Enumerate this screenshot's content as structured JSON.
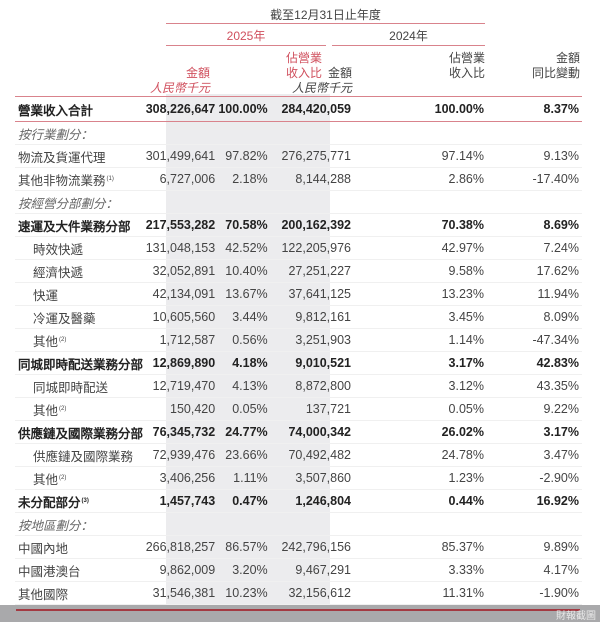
{
  "header": {
    "period_title": "截至12月31日止年度",
    "year_current": "2025年",
    "year_prior": "2024年",
    "columns": {
      "amount_2025_line1": "金額",
      "amount_2025_unit": "人民幣千元",
      "pct_2025_line1": "佔營業",
      "pct_2025_line2": "收入比",
      "amount_2024_line1": "金額",
      "amount_2024_unit": "人民幣千元",
      "pct_2024_line1": "佔營業",
      "pct_2024_line2": "收入比",
      "change_line1": "金額",
      "change_line2": "同比變動"
    }
  },
  "rows": [
    {
      "type": "total",
      "label": "營業收入合計",
      "fn": "",
      "a25": "308,226,647",
      "p25": "100.00%",
      "a24": "284,420,059",
      "p24": "100.00%",
      "chg": "8.37%"
    },
    {
      "type": "section",
      "label": "按行業劃分：",
      "fn": "",
      "a25": "",
      "p25": "",
      "a24": "",
      "p24": "",
      "chg": ""
    },
    {
      "type": "item",
      "label": "物流及貨運代理",
      "fn": "",
      "a25": "301,499,641",
      "p25": "97.82%",
      "a24": "276,275,771",
      "p24": "97.14%",
      "chg": "9.13%"
    },
    {
      "type": "item",
      "label": "其他非物流業務",
      "fn": "(1)",
      "a25": "6,727,006",
      "p25": "2.18%",
      "a24": "8,144,288",
      "p24": "2.86%",
      "chg": "-17.40%"
    },
    {
      "type": "section",
      "label": "按經營分部劃分：",
      "fn": "",
      "a25": "",
      "p25": "",
      "a24": "",
      "p24": "",
      "chg": ""
    },
    {
      "type": "bold",
      "label": "速運及大件業務分部",
      "fn": "",
      "a25": "217,553,282",
      "p25": "70.58%",
      "a24": "200,162,392",
      "p24": "70.38%",
      "chg": "8.69%"
    },
    {
      "type": "sub",
      "label": "時效快遞",
      "fn": "",
      "a25": "131,048,153",
      "p25": "42.52%",
      "a24": "122,205,976",
      "p24": "42.97%",
      "chg": "7.24%"
    },
    {
      "type": "sub",
      "label": "經濟快遞",
      "fn": "",
      "a25": "32,052,891",
      "p25": "10.40%",
      "a24": "27,251,227",
      "p24": "9.58%",
      "chg": "17.62%"
    },
    {
      "type": "sub",
      "label": "快運",
      "fn": "",
      "a25": "42,134,091",
      "p25": "13.67%",
      "a24": "37,641,125",
      "p24": "13.23%",
      "chg": "11.94%"
    },
    {
      "type": "sub",
      "label": "冷運及醫藥",
      "fn": "",
      "a25": "10,605,560",
      "p25": "3.44%",
      "a24": "9,812,161",
      "p24": "3.45%",
      "chg": "8.09%"
    },
    {
      "type": "sub",
      "label": "其他",
      "fn": "(2)",
      "a25": "1,712,587",
      "p25": "0.56%",
      "a24": "3,251,903",
      "p24": "1.14%",
      "chg": "-47.34%"
    },
    {
      "type": "bold",
      "label": "同城即時配送業務分部",
      "fn": "",
      "a25": "12,869,890",
      "p25": "4.18%",
      "a24": "9,010,521",
      "p24": "3.17%",
      "chg": "42.83%"
    },
    {
      "type": "sub",
      "label": "同城即時配送",
      "fn": "",
      "a25": "12,719,470",
      "p25": "4.13%",
      "a24": "8,872,800",
      "p24": "3.12%",
      "chg": "43.35%"
    },
    {
      "type": "sub",
      "label": "其他",
      "fn": "(2)",
      "a25": "150,420",
      "p25": "0.05%",
      "a24": "137,721",
      "p24": "0.05%",
      "chg": "9.22%"
    },
    {
      "type": "bold",
      "label": "供應鏈及國際業務分部",
      "fn": "",
      "a25": "76,345,732",
      "p25": "24.77%",
      "a24": "74,000,342",
      "p24": "26.02%",
      "chg": "3.17%"
    },
    {
      "type": "sub",
      "label": "供應鏈及國際業務",
      "fn": "",
      "a25": "72,939,476",
      "p25": "23.66%",
      "a24": "70,492,482",
      "p24": "24.78%",
      "chg": "3.47%"
    },
    {
      "type": "sub",
      "label": "其他",
      "fn": "(2)",
      "a25": "3,406,256",
      "p25": "1.11%",
      "a24": "3,507,860",
      "p24": "1.23%",
      "chg": "-2.90%"
    },
    {
      "type": "bold",
      "label": "未分配部分",
      "fn": "(3)",
      "a25": "1,457,743",
      "p25": "0.47%",
      "a24": "1,246,804",
      "p24": "0.44%",
      "chg": "16.92%"
    },
    {
      "type": "section",
      "label": "按地區劃分：",
      "fn": "",
      "a25": "",
      "p25": "",
      "a24": "",
      "p24": "",
      "chg": ""
    },
    {
      "type": "item",
      "label": "中國內地",
      "fn": "",
      "a25": "266,818,257",
      "p25": "86.57%",
      "a24": "242,796,156",
      "p24": "85.37%",
      "chg": "9.89%"
    },
    {
      "type": "item",
      "label": "中國港澳台",
      "fn": "",
      "a25": "9,862,009",
      "p25": "3.20%",
      "a24": "9,467,291",
      "p24": "3.33%",
      "chg": "4.17%"
    },
    {
      "type": "item",
      "label": "其他國際",
      "fn": "",
      "a25": "31,546,381",
      "p25": "10.23%",
      "a24": "32,156,612",
      "p24": "11.31%",
      "chg": "-1.90%"
    }
  ],
  "watermark": "財報截圖",
  "colors": {
    "accent_red": "#d0505e",
    "rule_pink": "#d9838c",
    "band_grey": "#ececee",
    "bottom_rule": "#a33a42"
  }
}
